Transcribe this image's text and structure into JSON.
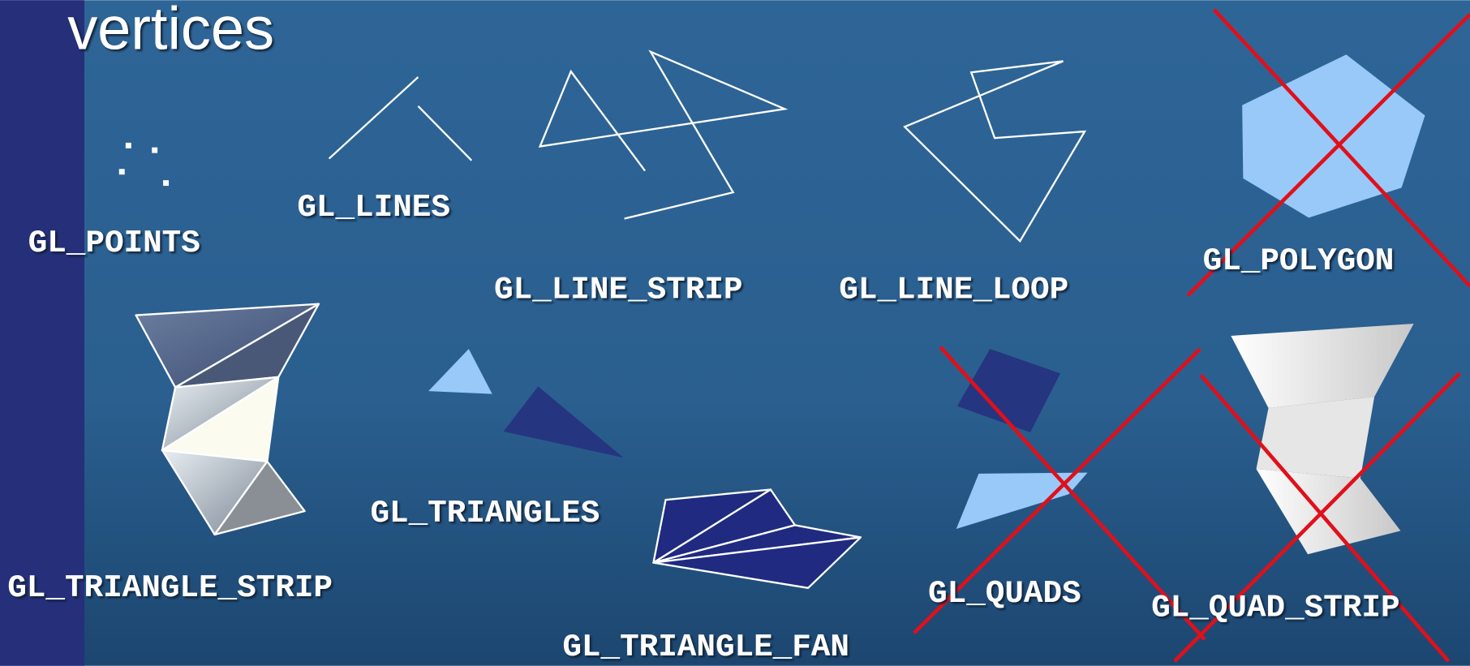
{
  "title": "vertices",
  "primitives": [
    "GL_POINTS",
    "GL_LINES",
    "GL_LINE_STRIP",
    "GL_LINE_LOOP",
    "GL_POLYGON",
    "GL_TRIANGLE_STRIP",
    "GL_TRIANGLES",
    "GL_TRIANGLE_FAN",
    "GL_QUADS",
    "GL_QUAD_STRIP"
  ]
}
